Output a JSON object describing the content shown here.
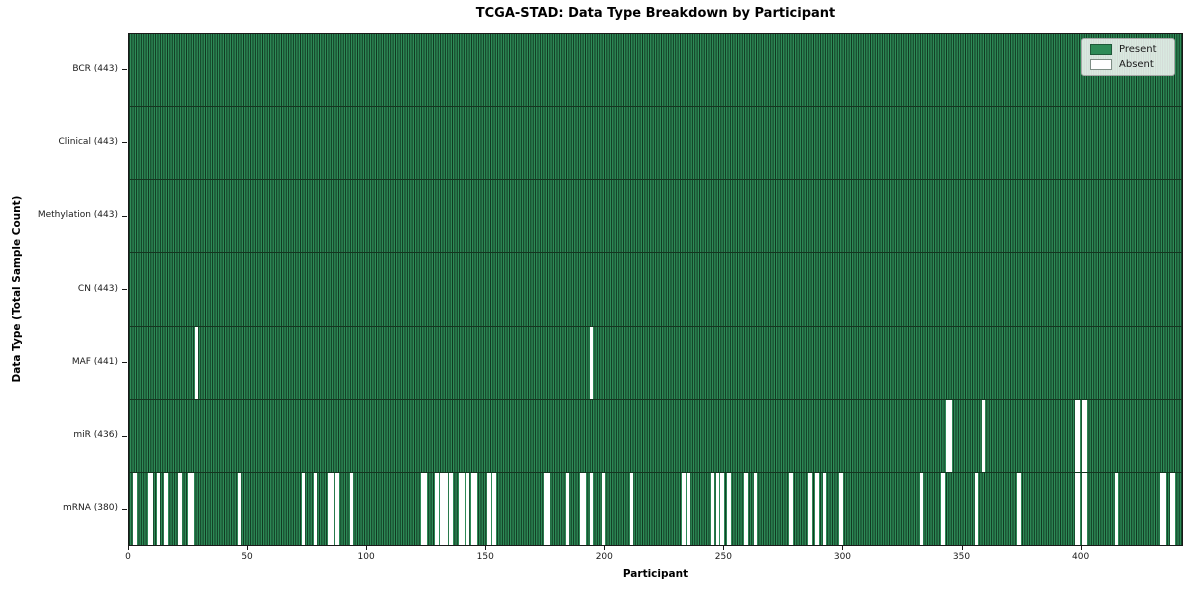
{
  "colors": {
    "present": "#2e8b57",
    "absent": "#ffffff",
    "bar_edge": "#143620",
    "axes_frame": "#1a1a1a",
    "legend_border": "#a6a6a6"
  },
  "chart_data": {
    "type": "heatmap",
    "title": "TCGA-STAD: Data Type Breakdown by Participant",
    "xlabel": "Participant",
    "ylabel": "Data Type (Total Sample Count)",
    "xlim": [
      0,
      443
    ],
    "n_participants": 443,
    "x_ticks": [
      0,
      50,
      100,
      150,
      200,
      250,
      300,
      350,
      400
    ],
    "grid": false,
    "legend_position": "upper right",
    "legend": {
      "entries": [
        {
          "label": "Present",
          "color": "#2e8b57"
        },
        {
          "label": "Absent",
          "color": "#ffffff"
        }
      ]
    },
    "rows": [
      {
        "label": "BCR (443)",
        "data_type": "BCR",
        "total": 443,
        "absent_participants": []
      },
      {
        "label": "Clinical (443)",
        "data_type": "Clinical",
        "total": 443,
        "absent_participants": []
      },
      {
        "label": "Methylation (443)",
        "data_type": "Methylation",
        "total": 443,
        "absent_participants": []
      },
      {
        "label": "CN (443)",
        "data_type": "CN",
        "total": 443,
        "absent_participants": []
      },
      {
        "label": "MAF (441)",
        "data_type": "MAF",
        "total": 441,
        "absent_participants": [
          28,
          194
        ]
      },
      {
        "label": "miR (436)",
        "data_type": "miR",
        "total": 436,
        "absent_participants": [
          344,
          345,
          359,
          398,
          399,
          401,
          402
        ]
      },
      {
        "label": "mRNA (380)",
        "data_type": "mRNA",
        "total": 380,
        "absent_participants": [
          2,
          8,
          9,
          12,
          15,
          21,
          25,
          26,
          46,
          73,
          78,
          84,
          85,
          87,
          93,
          123,
          124,
          129,
          131,
          132,
          133,
          135,
          139,
          140,
          142,
          144,
          145,
          151,
          153,
          175,
          176,
          184,
          190,
          191,
          194,
          199,
          211,
          233,
          235,
          245,
          247,
          249,
          252,
          259,
          263,
          278,
          286,
          289,
          292,
          299,
          333,
          342,
          356,
          374,
          398,
          399,
          401,
          402,
          415,
          434,
          435,
          438,
          439
        ]
      }
    ]
  }
}
